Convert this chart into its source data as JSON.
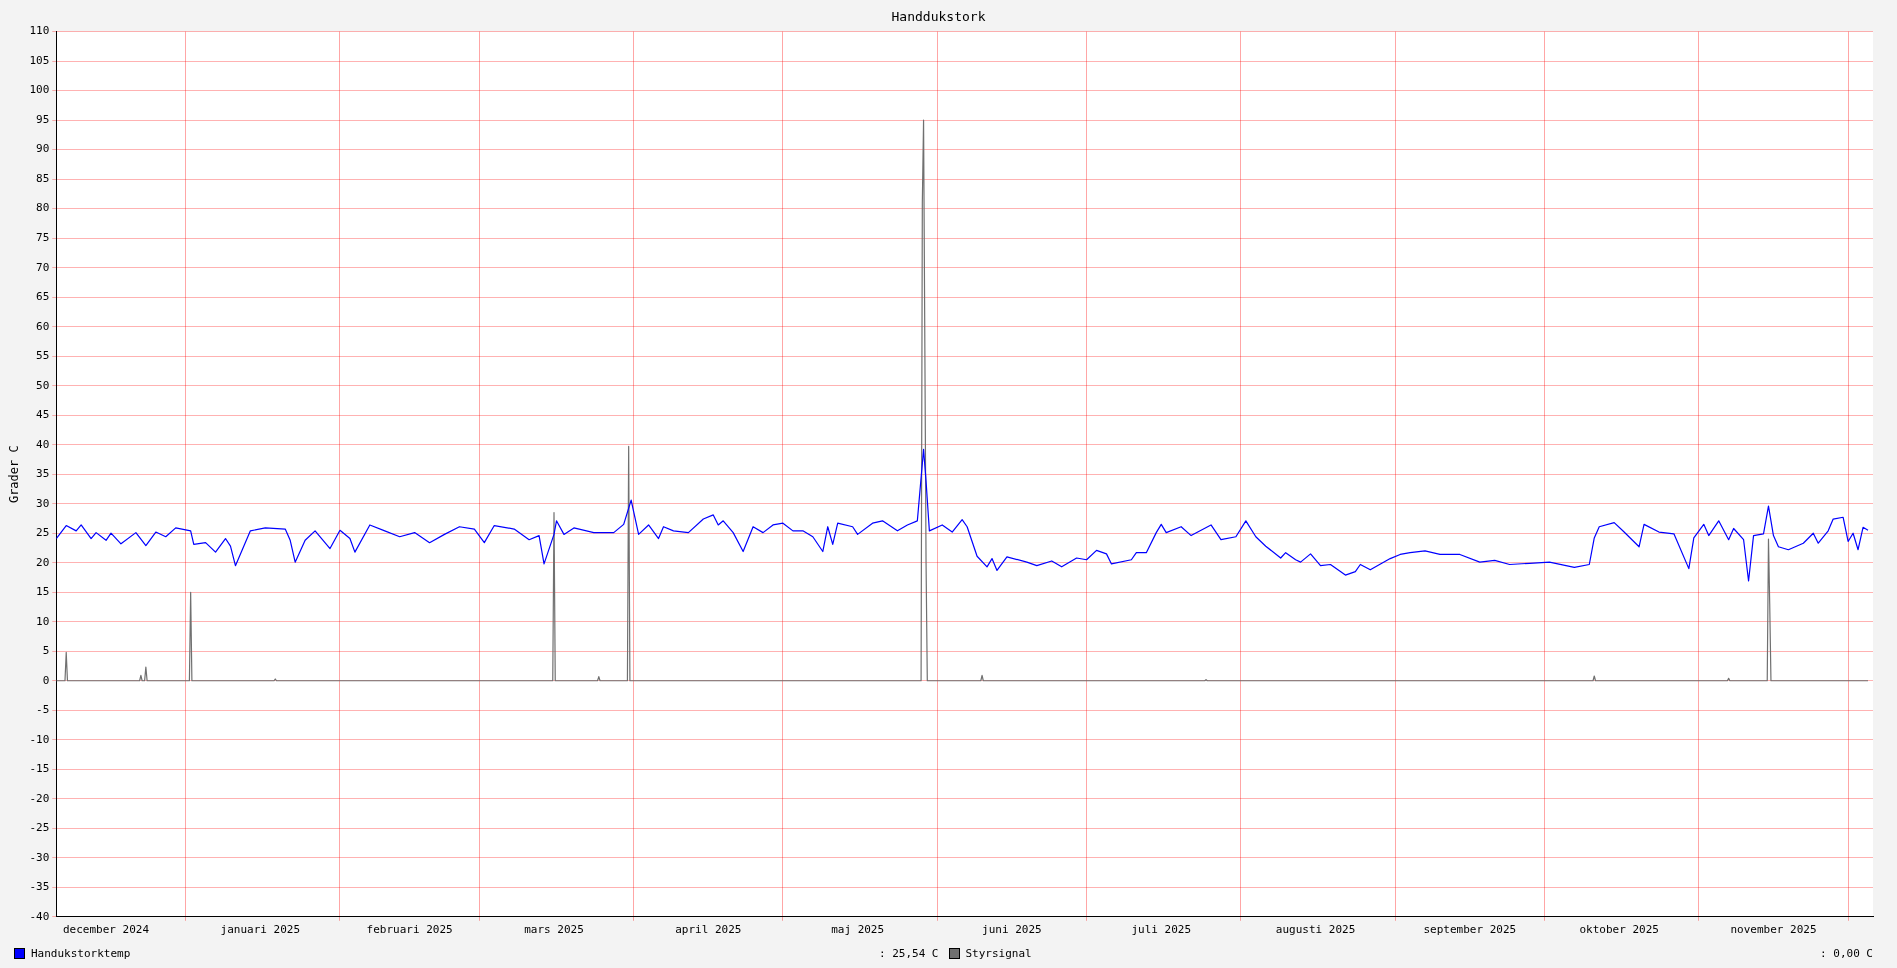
{
  "chart_data": {
    "type": "line",
    "title": "Handdukstork",
    "ylabel": "Grader C",
    "xlim": [
      "2024-12-06",
      "2025-12-06"
    ],
    "xticks": [
      {
        "value": "2025-01-01",
        "label": null
      },
      {
        "value": "2025-02-01",
        "label": null
      },
      {
        "value": "2025-03-01",
        "label": null
      },
      {
        "value": "2025-04-01",
        "label": null
      },
      {
        "value": "2025-05-01",
        "label": null
      },
      {
        "value": "2025-06-01",
        "label": null
      },
      {
        "value": "2025-07-01",
        "label": null
      },
      {
        "value": "2025-08-01",
        "label": null
      },
      {
        "value": "2025-09-01",
        "label": null
      },
      {
        "value": "2025-10-01",
        "label": null
      },
      {
        "value": "2025-11-01",
        "label": null
      },
      {
        "value": "2025-12-01",
        "label": null
      },
      {
        "value": "2024-12-16",
        "label": "december 2024"
      },
      {
        "value": "2025-01-16",
        "label": "januari 2025"
      },
      {
        "value": "2025-02-15",
        "label": "februari 2025"
      },
      {
        "value": "2025-03-16",
        "label": "mars 2025"
      },
      {
        "value": "2025-04-16",
        "label": "april 2025"
      },
      {
        "value": "2025-05-16",
        "label": "maj 2025"
      },
      {
        "value": "2025-06-16",
        "label": "juni 2025"
      },
      {
        "value": "2025-07-16",
        "label": "juli 2025"
      },
      {
        "value": "2025-08-16",
        "label": "augusti 2025"
      },
      {
        "value": "2025-09-16",
        "label": "september 2025"
      },
      {
        "value": "2025-10-16",
        "label": "oktober 2025"
      },
      {
        "value": "2025-11-16",
        "label": "november 2025"
      }
    ],
    "ylim": [
      -40,
      110
    ],
    "yticks": [
      -40,
      -35,
      -30,
      -25,
      -20,
      -15,
      -10,
      -5,
      0,
      5,
      10,
      15,
      20,
      25,
      30,
      35,
      40,
      45,
      50,
      55,
      60,
      65,
      70,
      75,
      80,
      85,
      90,
      95,
      100,
      105,
      110
    ],
    "grid": true,
    "legend": "bottom",
    "line_style": "solid",
    "marker": "none",
    "annotations": [
      ": 25,54 C",
      ": 0,00 C"
    ],
    "series": [
      {
        "name": "Handukstorktemp",
        "color": "#0000ff",
        "x": [
          "2024-12-06",
          "2024-12-08",
          "2024-12-10",
          "2024-12-11",
          "2024-12-13",
          "2024-12-14",
          "2024-12-16",
          "2024-12-17",
          "2024-12-19",
          "2024-12-22",
          "2024-12-24",
          "2024-12-26",
          "2024-12-28",
          "2024-12-30",
          "2025-01-02",
          "2025-01-02T15:00",
          "2025-01-05",
          "2025-01-07",
          "2025-01-09",
          "2025-01-10",
          "2025-01-11",
          "2025-01-14",
          "2025-01-17",
          "2025-01-21",
          "2025-01-22",
          "2025-01-23",
          "2025-01-25",
          "2025-01-27",
          "2025-01-30",
          "2025-02-01",
          "2025-02-03",
          "2025-02-04",
          "2025-02-07",
          "2025-02-10",
          "2025-02-13",
          "2025-02-16",
          "2025-02-19",
          "2025-02-22",
          "2025-02-25",
          "2025-02-28",
          "2025-03-02",
          "2025-03-04",
          "2025-03-08",
          "2025-03-11",
          "2025-03-13",
          "2025-03-14",
          "2025-03-16",
          "2025-03-16T12:00",
          "2025-03-18",
          "2025-03-20",
          "2025-03-24",
          "2025-03-28",
          "2025-03-30",
          "2025-03-31T12:00",
          "2025-04-02",
          "2025-04-04",
          "2025-04-06",
          "2025-04-07",
          "2025-04-09",
          "2025-04-12",
          "2025-04-15",
          "2025-04-17",
          "2025-04-18",
          "2025-04-19",
          "2025-04-21",
          "2025-04-23",
          "2025-04-25",
          "2025-04-27",
          "2025-04-29",
          "2025-05-01",
          "2025-05-03",
          "2025-05-05",
          "2025-05-07",
          "2025-05-09",
          "2025-05-10",
          "2025-05-11",
          "2025-05-12",
          "2025-05-15",
          "2025-05-16",
          "2025-05-19",
          "2025-05-21",
          "2025-05-24",
          "2025-05-26",
          "2025-05-28",
          "2025-05-29T06:00",
          "2025-05-29T17:00",
          "2025-05-30T10:00",
          "2025-06-02",
          "2025-06-04",
          "2025-06-06",
          "2025-06-07",
          "2025-06-09",
          "2025-06-11",
          "2025-06-12",
          "2025-06-13",
          "2025-06-15",
          "2025-06-19",
          "2025-06-21",
          "2025-06-24",
          "2025-06-26",
          "2025-06-29",
          "2025-07-01",
          "2025-07-03",
          "2025-07-05",
          "2025-07-06",
          "2025-07-10",
          "2025-07-11",
          "2025-07-13",
          "2025-07-15",
          "2025-07-16",
          "2025-07-17",
          "2025-07-20",
          "2025-07-22",
          "2025-07-26",
          "2025-07-28",
          "2025-07-31",
          "2025-08-02",
          "2025-08-04",
          "2025-08-06",
          "2025-08-09",
          "2025-08-10",
          "2025-08-12",
          "2025-08-13",
          "2025-08-15",
          "2025-08-17",
          "2025-08-19",
          "2025-08-22",
          "2025-08-24",
          "2025-08-25",
          "2025-08-27",
          "2025-08-31",
          "2025-09-02",
          "2025-09-04",
          "2025-09-07",
          "2025-09-10",
          "2025-09-14",
          "2025-09-18",
          "2025-09-21",
          "2025-09-24",
          "2025-09-28",
          "2025-10-02",
          "2025-10-07",
          "2025-10-10",
          "2025-10-11",
          "2025-10-12",
          "2025-10-15",
          "2025-10-17",
          "2025-10-20",
          "2025-10-21",
          "2025-10-24",
          "2025-10-27",
          "2025-10-30",
          "2025-10-31",
          "2025-11-02",
          "2025-11-03",
          "2025-11-05",
          "2025-11-07",
          "2025-11-08",
          "2025-11-10",
          "2025-11-11",
          "2025-11-12",
          "2025-11-14",
          "2025-11-15",
          "2025-11-16",
          "2025-11-17",
          "2025-11-19",
          "2025-11-22",
          "2025-11-24",
          "2025-11-25",
          "2025-11-27",
          "2025-11-28",
          "2025-11-30",
          "2025-12-01",
          "2025-12-02",
          "2025-12-03",
          "2025-12-04",
          "2025-12-05"
        ],
        "values": [
          24.1,
          26.3,
          25.4,
          26.4,
          24.1,
          25.1,
          23.8,
          25,
          23.2,
          25.1,
          22.9,
          25.2,
          24.4,
          25.9,
          25.4,
          23.1,
          23.4,
          21.8,
          24.1,
          22.8,
          19.5,
          25.4,
          25.9,
          25.7,
          23.8,
          20.1,
          23.8,
          25.4,
          22.4,
          25.5,
          24.1,
          21.8,
          26.4,
          25.4,
          24.4,
          25.1,
          23.4,
          24.8,
          26.1,
          25.7,
          23.4,
          26.3,
          25.7,
          23.9,
          24.6,
          19.8,
          24.8,
          27.1,
          24.8,
          25.9,
          25.1,
          25.1,
          26.5,
          30.6,
          24.8,
          26.4,
          24.1,
          26.1,
          25.4,
          25.1,
          27.4,
          28.1,
          26.4,
          27.1,
          25.1,
          21.9,
          26.1,
          25.1,
          26.4,
          26.7,
          25.4,
          25.4,
          24.4,
          21.9,
          26.1,
          23.1,
          26.7,
          26.1,
          24.8,
          26.7,
          27.1,
          25.4,
          26.4,
          27.1,
          39.2,
          34.3,
          25.4,
          26.4,
          25.2,
          27.3,
          26.1,
          21.1,
          19.3,
          20.7,
          18.7,
          21,
          20.1,
          19.5,
          20.3,
          19.3,
          20.8,
          20.5,
          22.1,
          21.5,
          19.8,
          20.5,
          21.7,
          21.7,
          25.1,
          26.5,
          25.1,
          26.1,
          24.6,
          26.4,
          23.9,
          24.4,
          27.1,
          24.4,
          22.8,
          20.8,
          21.7,
          20.5,
          20.1,
          21.5,
          19.5,
          19.7,
          17.9,
          18.5,
          19.7,
          18.8,
          20.7,
          21.4,
          21.7,
          22,
          21.4,
          21.4,
          20.1,
          20.4,
          19.7,
          19.9,
          20.1,
          19.2,
          19.7,
          24.2,
          26.1,
          26.8,
          25.2,
          22.7,
          26.5,
          25.2,
          24.9,
          19,
          24.2,
          26.5,
          24.6,
          27.1,
          23.9,
          25.8,
          23.9,
          16.9,
          24.6,
          24.9,
          29.6,
          24.6,
          22.7,
          22.2,
          23.3,
          25,
          23.3,
          25.4,
          27.4,
          27.7,
          23.6,
          25,
          22.2,
          26,
          25.5
        ]
      },
      {
        "name": "Styrsignal",
        "color": "#707070",
        "x": [
          "2024-12-06",
          "2024-12-07T18:00",
          "2024-12-08",
          "2024-12-08T06:00",
          "2024-12-22T18:00",
          "2024-12-23",
          "2024-12-23T06:00",
          "2024-12-23T18:00",
          "2024-12-24",
          "2024-12-24T06:00",
          "2025-01-01T18:00",
          "2025-01-02",
          "2025-01-02T06:00",
          "2025-01-18T18:00",
          "2025-01-19",
          "2025-01-19T06:00",
          "2025-03-15T18:00",
          "2025-03-16",
          "2025-03-16T06:00",
          "2025-03-24T18:00",
          "2025-03-25",
          "2025-03-25T06:00",
          "2025-03-30T18:00",
          "2025-03-31",
          "2025-03-31T06:00",
          "2025-05-28T18:00",
          "2025-05-29",
          "2025-05-29T06:00",
          "2025-05-29T18:00",
          "2025-05-30",
          "2025-06-09T18:00",
          "2025-06-10",
          "2025-06-10T06:00",
          "2025-07-24T18:00",
          "2025-07-25",
          "2025-07-25T06:00",
          "2025-10-10T18:00",
          "2025-10-11",
          "2025-10-11T06:00",
          "2025-11-06T18:00",
          "2025-11-07",
          "2025-11-07T06:00",
          "2025-11-14T18:00",
          "2025-11-15",
          "2025-11-15T06:00",
          "2025-11-15T12:00",
          "2025-12-05"
        ],
        "values": [
          0,
          0,
          4.8,
          0,
          0,
          0.9,
          0,
          0,
          2.3,
          0,
          0,
          15,
          0,
          0,
          0.3,
          0,
          0,
          28.5,
          0,
          0,
          0.7,
          0,
          0,
          39.7,
          0,
          0,
          81,
          95,
          20,
          0,
          0,
          0.9,
          0,
          0,
          0.2,
          0,
          0,
          0.8,
          0,
          0,
          0.4,
          0,
          0,
          24,
          13,
          0,
          0
        ]
      }
    ]
  }
}
